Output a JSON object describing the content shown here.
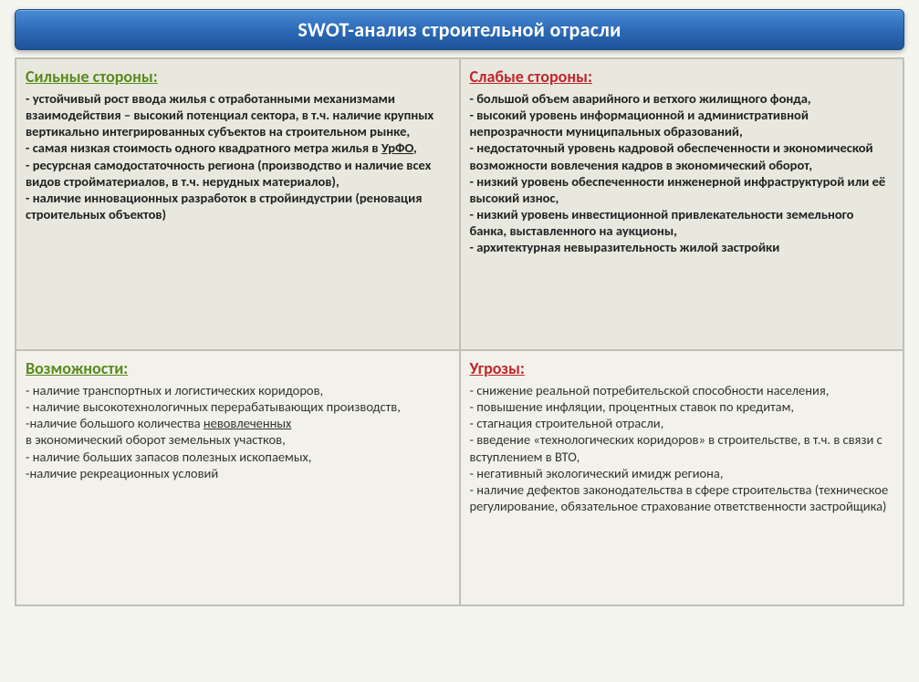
{
  "title": "SWOT-анализ строительной отрасли",
  "colors": {
    "header_gradient_top": "#4a8cd6",
    "header_gradient_mid": "#2d6bb8",
    "header_gradient_bot": "#1e5399",
    "header_border": "#174a88",
    "cell_top_bg": "#e8e8de",
    "cell_bottom_bg": "#f2f2ea",
    "cell_border": "#c0c0b8",
    "heading_green": "#5a8a1f",
    "heading_red": "#c1272d",
    "body_text": "#333333"
  },
  "fonts": {
    "title_size_pt": 17,
    "heading_size_pt": 14,
    "body_size_pt": 11
  },
  "quadrants": {
    "strengths": {
      "heading": "Сильные стороны:",
      "heading_color": "green",
      "body_parts": [
        "- устойчивый рост ввода жилья с отработанными механизмами взаимодействия – высокий потенциал сектора, в т.ч. наличие крупных вертикально интегрированных субъектов на строительном рынке,\n- самая низкая стоимость одного квадратного метра жилья в ",
        "УрФО",
        ",\n- ресурсная самодостаточность региона (производство и наличие всех видов стройматериалов, в т.ч. нерудных материалов),\n- наличие инновационных разработок в стройиндустрии (реновация строительных объектов)"
      ]
    },
    "weaknesses": {
      "heading": "Слабые стороны:",
      "heading_color": "red",
      "body_parts": [
        "- большой объем аварийного и ветхого жилищного фонда,\n- высокий уровень информационной и административной непрозрачности муниципальных образований,\n- недостаточный уровень кадровой обеспеченности и экономической возможности вовлечения кадров в экономический оборот,\n- низкий уровень обеспеченности инженерной инфраструктурой или её высокий износ,\n- низкий уровень инвестиционной привлекательности земельного банка, выставленного на аукционы,\n- архитектурная невыразительность жилой застройки"
      ]
    },
    "opportunities": {
      "heading": "Возможности:",
      "heading_color": "green",
      "body_parts": [
        "- наличие транспортных и логистических коридоров,\n- наличие высокотехнологичных перерабатывающих производств,\n-наличие большого количества ",
        "невовлеченных",
        "\nв экономический оборот земельных участков,\n- наличие больших запасов полезных ископаемых,\n-наличие рекреационных условий"
      ]
    },
    "threats": {
      "heading": "Угрозы:",
      "heading_color": "red",
      "body_parts": [
        "- снижение реальной потребительской способности населения,\n- повышение инфляции, процентных ставок по кредитам,\n- стагнация строительной отрасли,\n- введение «технологических коридоров» в строительстве, в т.ч. в связи с вступлением в ВТО,\n- негативный экологический имидж региона,\n- наличие дефектов законодательства в сфере строительства (техническое регулирование, обязательное страхование ответственности застройщика)"
      ]
    }
  }
}
